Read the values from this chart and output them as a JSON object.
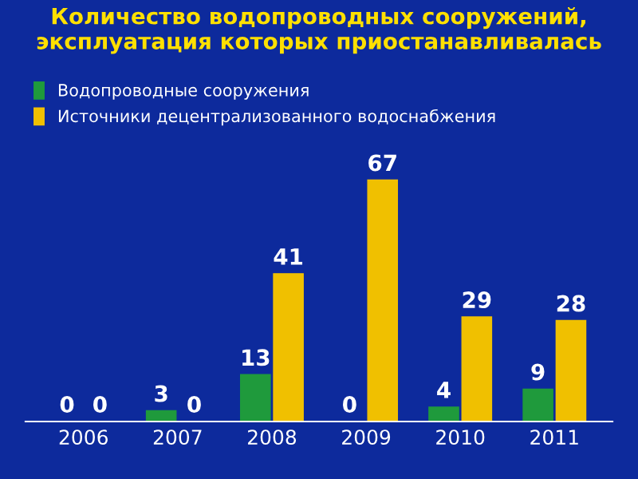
{
  "chart_data": {
    "type": "bar",
    "title": "Количество водопроводных сооружений, эксплуатация которых приостанавливалась",
    "categories": [
      "2006",
      "2007",
      "2008",
      "2009",
      "2010",
      "2011"
    ],
    "series": [
      {
        "name": "Водопроводные сооружения",
        "color": "#1f9a3c",
        "values": [
          0,
          3,
          13,
          0,
          4,
          9
        ]
      },
      {
        "name": "Источники децентрализованного водоснабжения",
        "color": "#f0c000",
        "values": [
          0,
          0,
          41,
          67,
          29,
          28
        ]
      }
    ],
    "data_labels": true,
    "legend": "top left",
    "grid": false
  }
}
